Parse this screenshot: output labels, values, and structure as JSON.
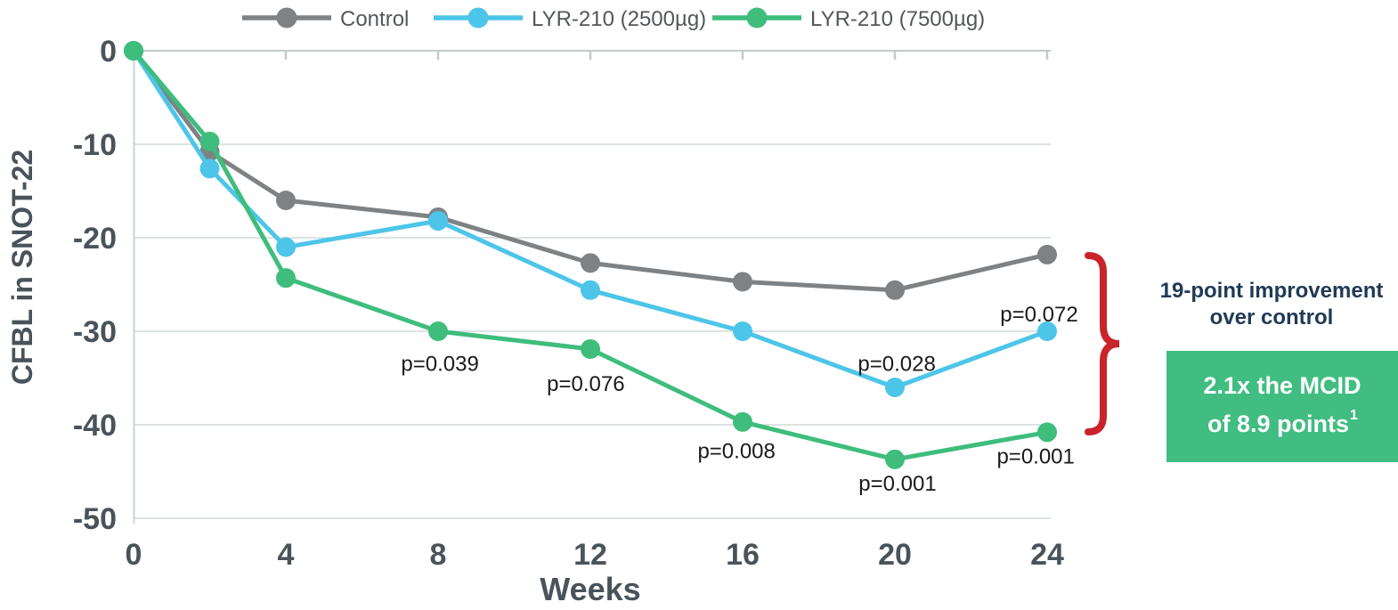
{
  "chart_data": {
    "type": "line",
    "title": "",
    "xlabel": "Weeks",
    "ylabel": "CFBL in SNOT-22",
    "xlim": [
      0,
      24
    ],
    "ylim": [
      -50,
      0
    ],
    "x_ticks": [
      0,
      4,
      8,
      12,
      16,
      20,
      24
    ],
    "y_ticks": [
      0,
      -10,
      -20,
      -30,
      -40,
      -50
    ],
    "grid": true,
    "legend_position": "top-center",
    "x": [
      0,
      2,
      4,
      8,
      12,
      16,
      20,
      24
    ],
    "series": [
      {
        "name": "Control",
        "color": "#7f8285",
        "values": [
          0,
          -10.8,
          -16.0,
          -17.8,
          -22.7,
          -24.7,
          -25.6,
          -21.8
        ]
      },
      {
        "name": "LYR-210 (2500µg)",
        "color": "#4dc5e9",
        "values": [
          0,
          -12.6,
          -21.0,
          -18.2,
          -25.6,
          -30.0,
          -36.0,
          -30.0
        ]
      },
      {
        "name": "LYR-210 (7500µg)",
        "color": "#3ebd7c",
        "values": [
          0,
          -9.7,
          -24.3,
          -30.0,
          -31.9,
          -39.7,
          -43.7,
          -40.8
        ]
      }
    ],
    "p_value_annotations": [
      {
        "text": "p=0.039",
        "week": 8.05,
        "value": -33.4
      },
      {
        "text": "p=0.076",
        "week": 11.88,
        "value": -35.5
      },
      {
        "text": "p=0.008",
        "week": 15.84,
        "value": -42.7
      },
      {
        "text": "p=0.028",
        "week": 20.05,
        "value": -33.4
      },
      {
        "text": "p=0.001",
        "week": 20.07,
        "value": -46.2
      },
      {
        "text": "p=0.072",
        "week": 23.79,
        "value": -28.1
      },
      {
        "text": "p=0.001",
        "week": 23.7,
        "value": -43.3
      }
    ]
  },
  "annotations": {
    "note_line1": "19-point improvement",
    "note_line2": "over control",
    "note_color": "#1f3a54",
    "box_line1": "2.1x the MCID",
    "box_line2": "of 8.9 points",
    "box_superscript": "1",
    "box_bg_color": "#41bd81",
    "box_text_color": "#ffffff",
    "bracket_color": "#c9242b"
  },
  "style_colors": {
    "tick_label_color": "#49535a",
    "legend_text_color": "#54575a",
    "p_value_color": "#1a1a1a",
    "grid_color": "#dde3e3",
    "axis_line_color": "#c2c9c9",
    "left_axis_color": "#ccd3d3"
  }
}
